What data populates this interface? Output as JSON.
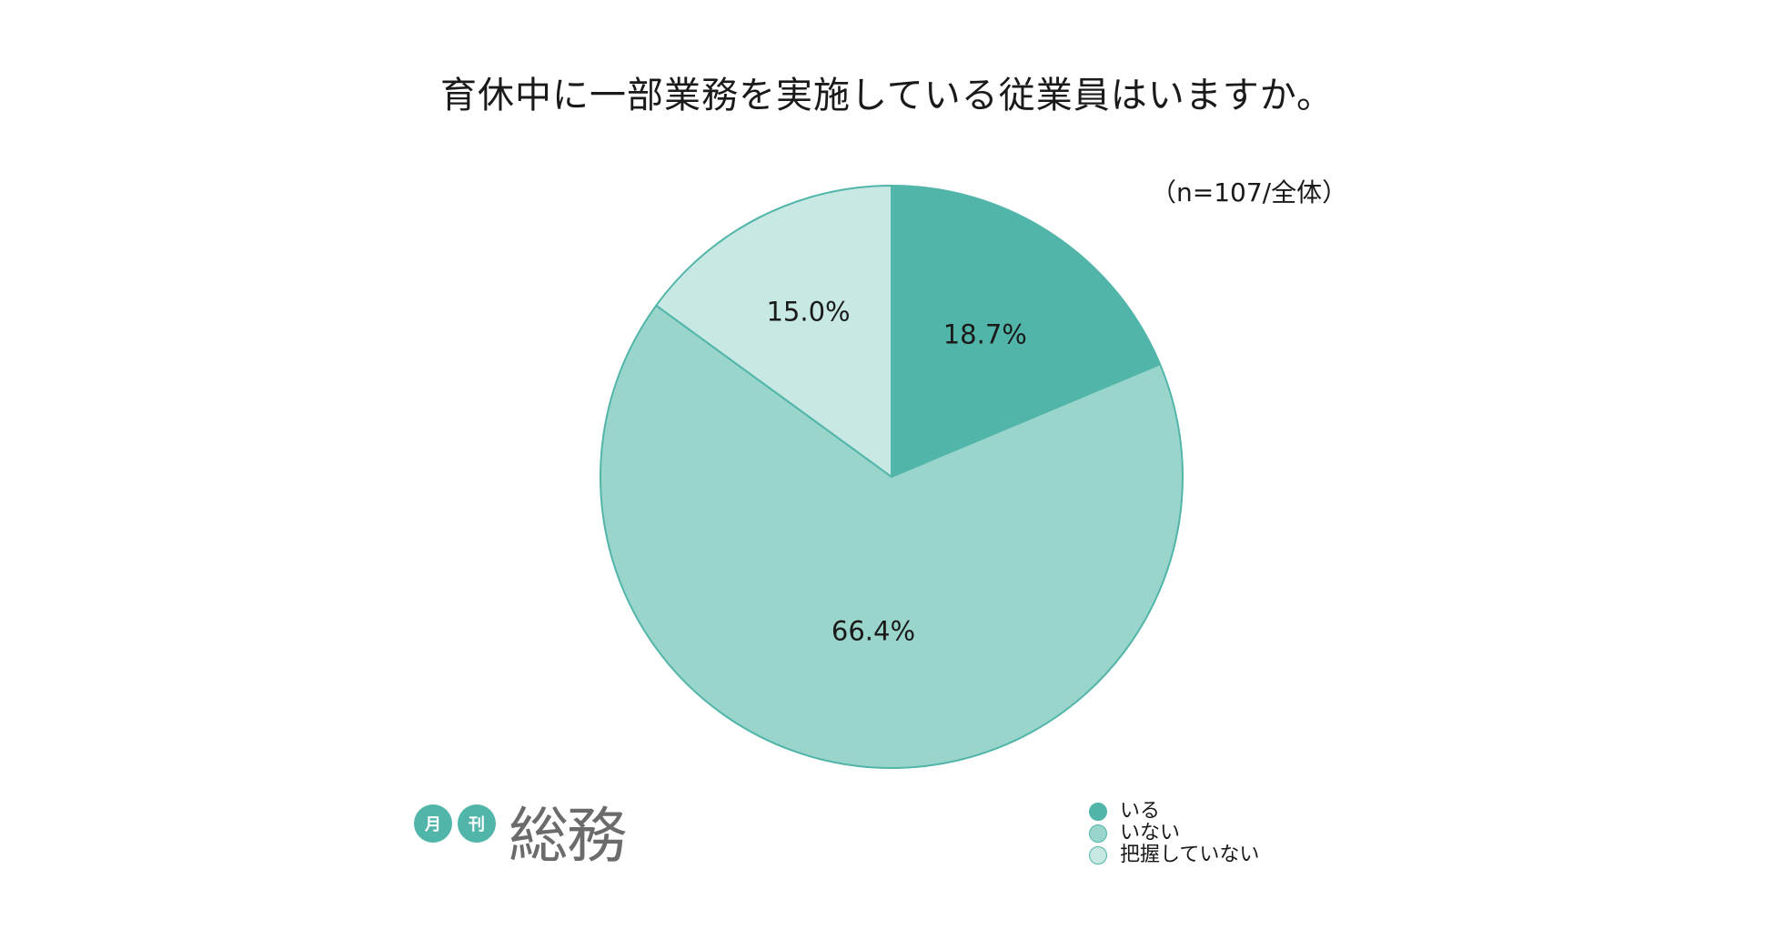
{
  "header": {
    "title": "育休中に一部業務を実施している従業員はいますか。",
    "sample_note": "（n=107/全体）"
  },
  "chart_data": {
    "type": "pie",
    "title": "育休中に一部業務を実施している従業員はいますか。",
    "note": "（n=107/全体）",
    "start_angle": "12 o'clock",
    "direction": "clockwise",
    "slices": [
      {
        "label": "いる",
        "value": 18.7,
        "display": "18.7%",
        "color": "#52b5aa"
      },
      {
        "label": "いない",
        "value": 66.4,
        "display": "66.4%",
        "color": "#99d5cb"
      },
      {
        "label": "把握していない",
        "value": 15.0,
        "display": "15.0%",
        "color": "#c7e8e3"
      }
    ],
    "edge_color": "#52b5aa",
    "legend_position": "bottom-right"
  },
  "legend": {
    "items": [
      {
        "label": "いる",
        "color": "#52b5aa"
      },
      {
        "label": "いない",
        "color": "#99d5cb"
      },
      {
        "label": "把握していない",
        "color": "#c7e8e3"
      }
    ]
  },
  "logo": {
    "badge_1": "月",
    "badge_2": "刊",
    "name": "総務",
    "badge_color": "#52b5aa"
  }
}
